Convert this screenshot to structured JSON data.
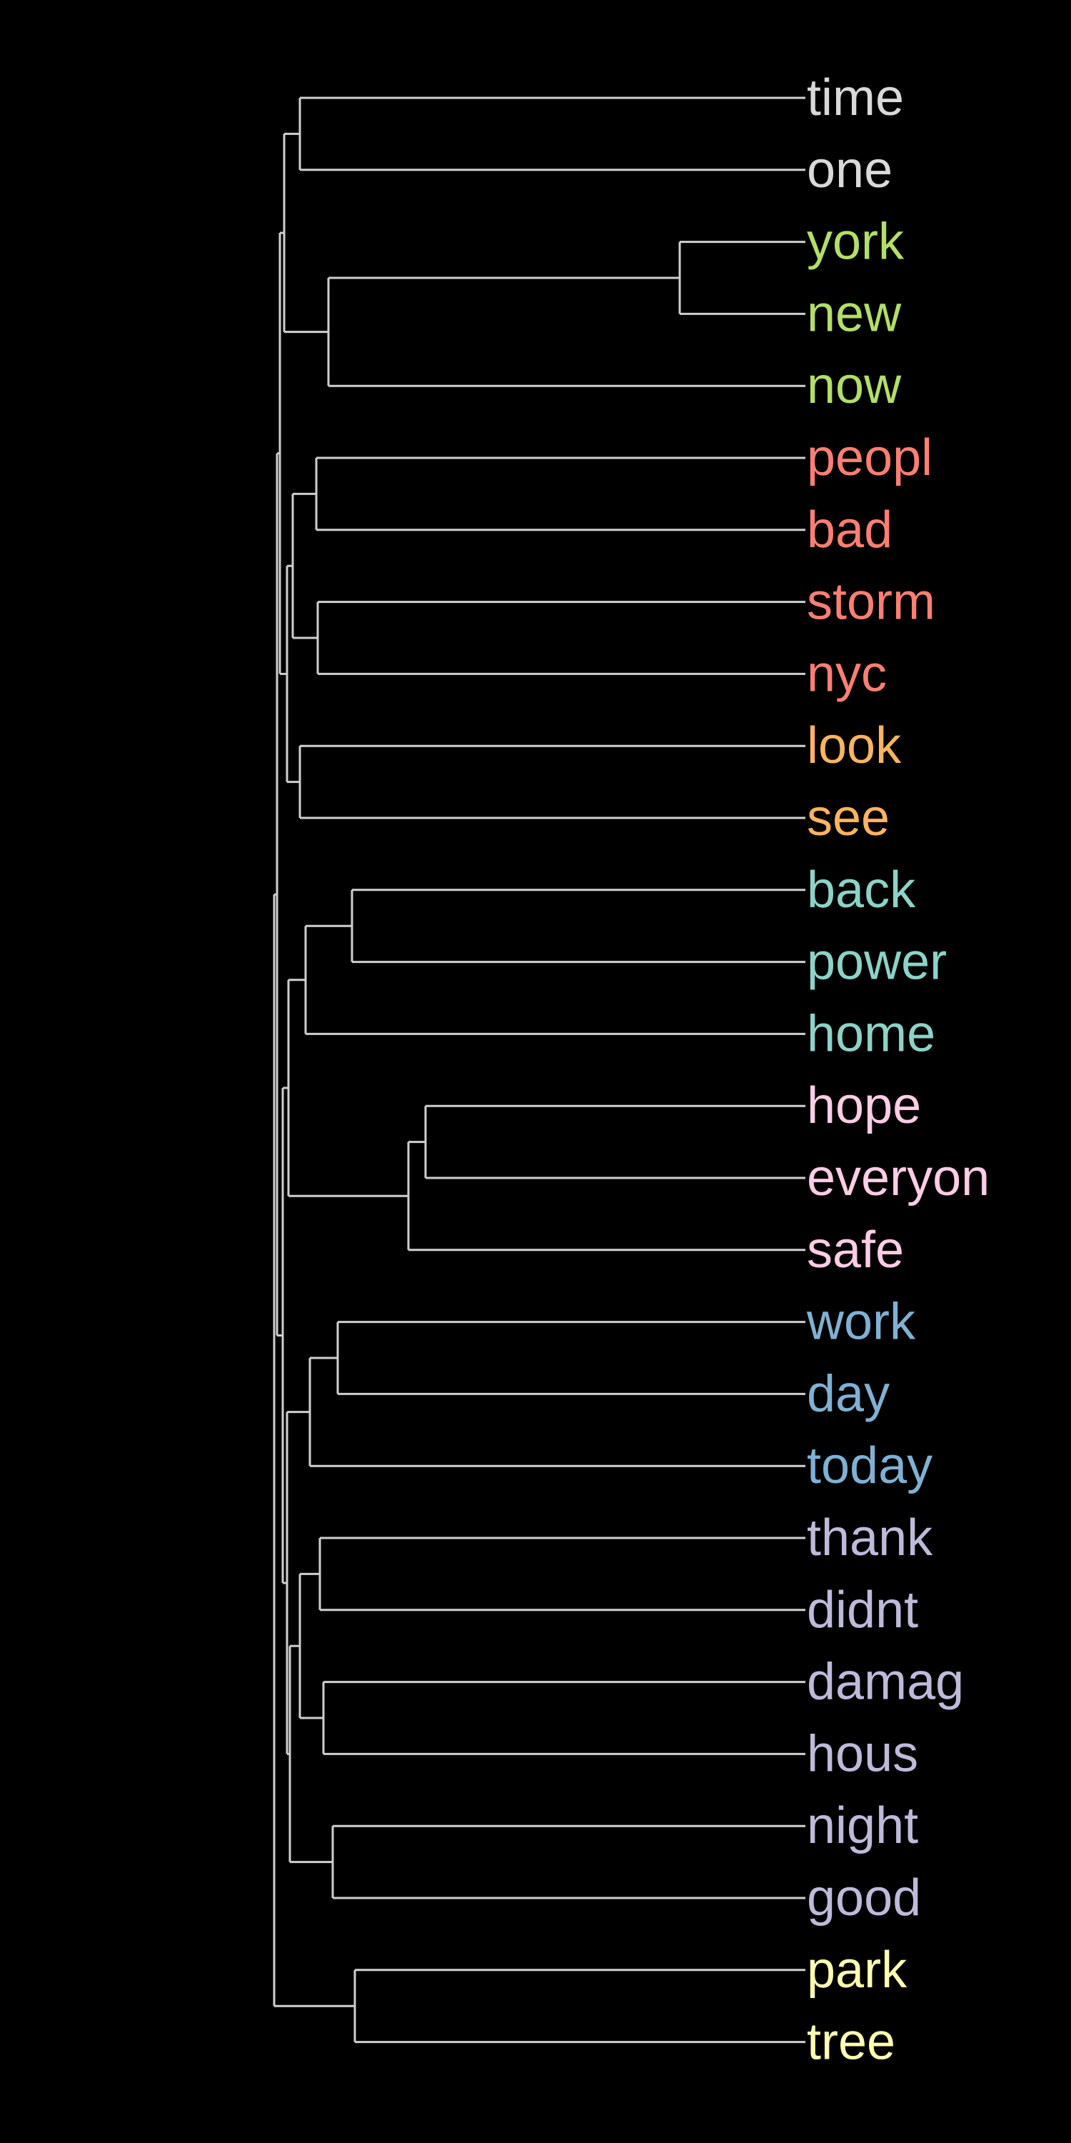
{
  "diagram": {
    "type": "dendrogram",
    "orientation": "leaves-right",
    "background": "#000000",
    "link_color": "#cfcfcf",
    "leaves": [
      {
        "label": "time",
        "color": "#d9d9d9"
      },
      {
        "label": "one",
        "color": "#d9d9d9"
      },
      {
        "label": "york",
        "color": "#b3de69"
      },
      {
        "label": "new",
        "color": "#b3de69"
      },
      {
        "label": "now",
        "color": "#b3de69"
      },
      {
        "label": "peopl",
        "color": "#fb8072"
      },
      {
        "label": "bad",
        "color": "#fb8072"
      },
      {
        "label": "storm",
        "color": "#fb8072"
      },
      {
        "label": "nyc",
        "color": "#fb8072"
      },
      {
        "label": "look",
        "color": "#fdb462"
      },
      {
        "label": "see",
        "color": "#fdb462"
      },
      {
        "label": "back",
        "color": "#8dd3c7"
      },
      {
        "label": "power",
        "color": "#8dd3c7"
      },
      {
        "label": "home",
        "color": "#8dd3c7"
      },
      {
        "label": "hope",
        "color": "#fccde5"
      },
      {
        "label": "everyon",
        "color": "#fccde5"
      },
      {
        "label": "safe",
        "color": "#fccde5"
      },
      {
        "label": "work",
        "color": "#80b1d3"
      },
      {
        "label": "day",
        "color": "#80b1d3"
      },
      {
        "label": "today",
        "color": "#80b1d3"
      },
      {
        "label": "thank",
        "color": "#bebada"
      },
      {
        "label": "didnt",
        "color": "#bebada"
      },
      {
        "label": "damag",
        "color": "#bebada"
      },
      {
        "label": "hous",
        "color": "#bebada"
      },
      {
        "label": "night",
        "color": "#bebada"
      },
      {
        "label": "good",
        "color": "#bebada"
      },
      {
        "label": "park",
        "color": "#ffffb3"
      },
      {
        "label": "tree",
        "color": "#ffffb3"
      }
    ]
  }
}
